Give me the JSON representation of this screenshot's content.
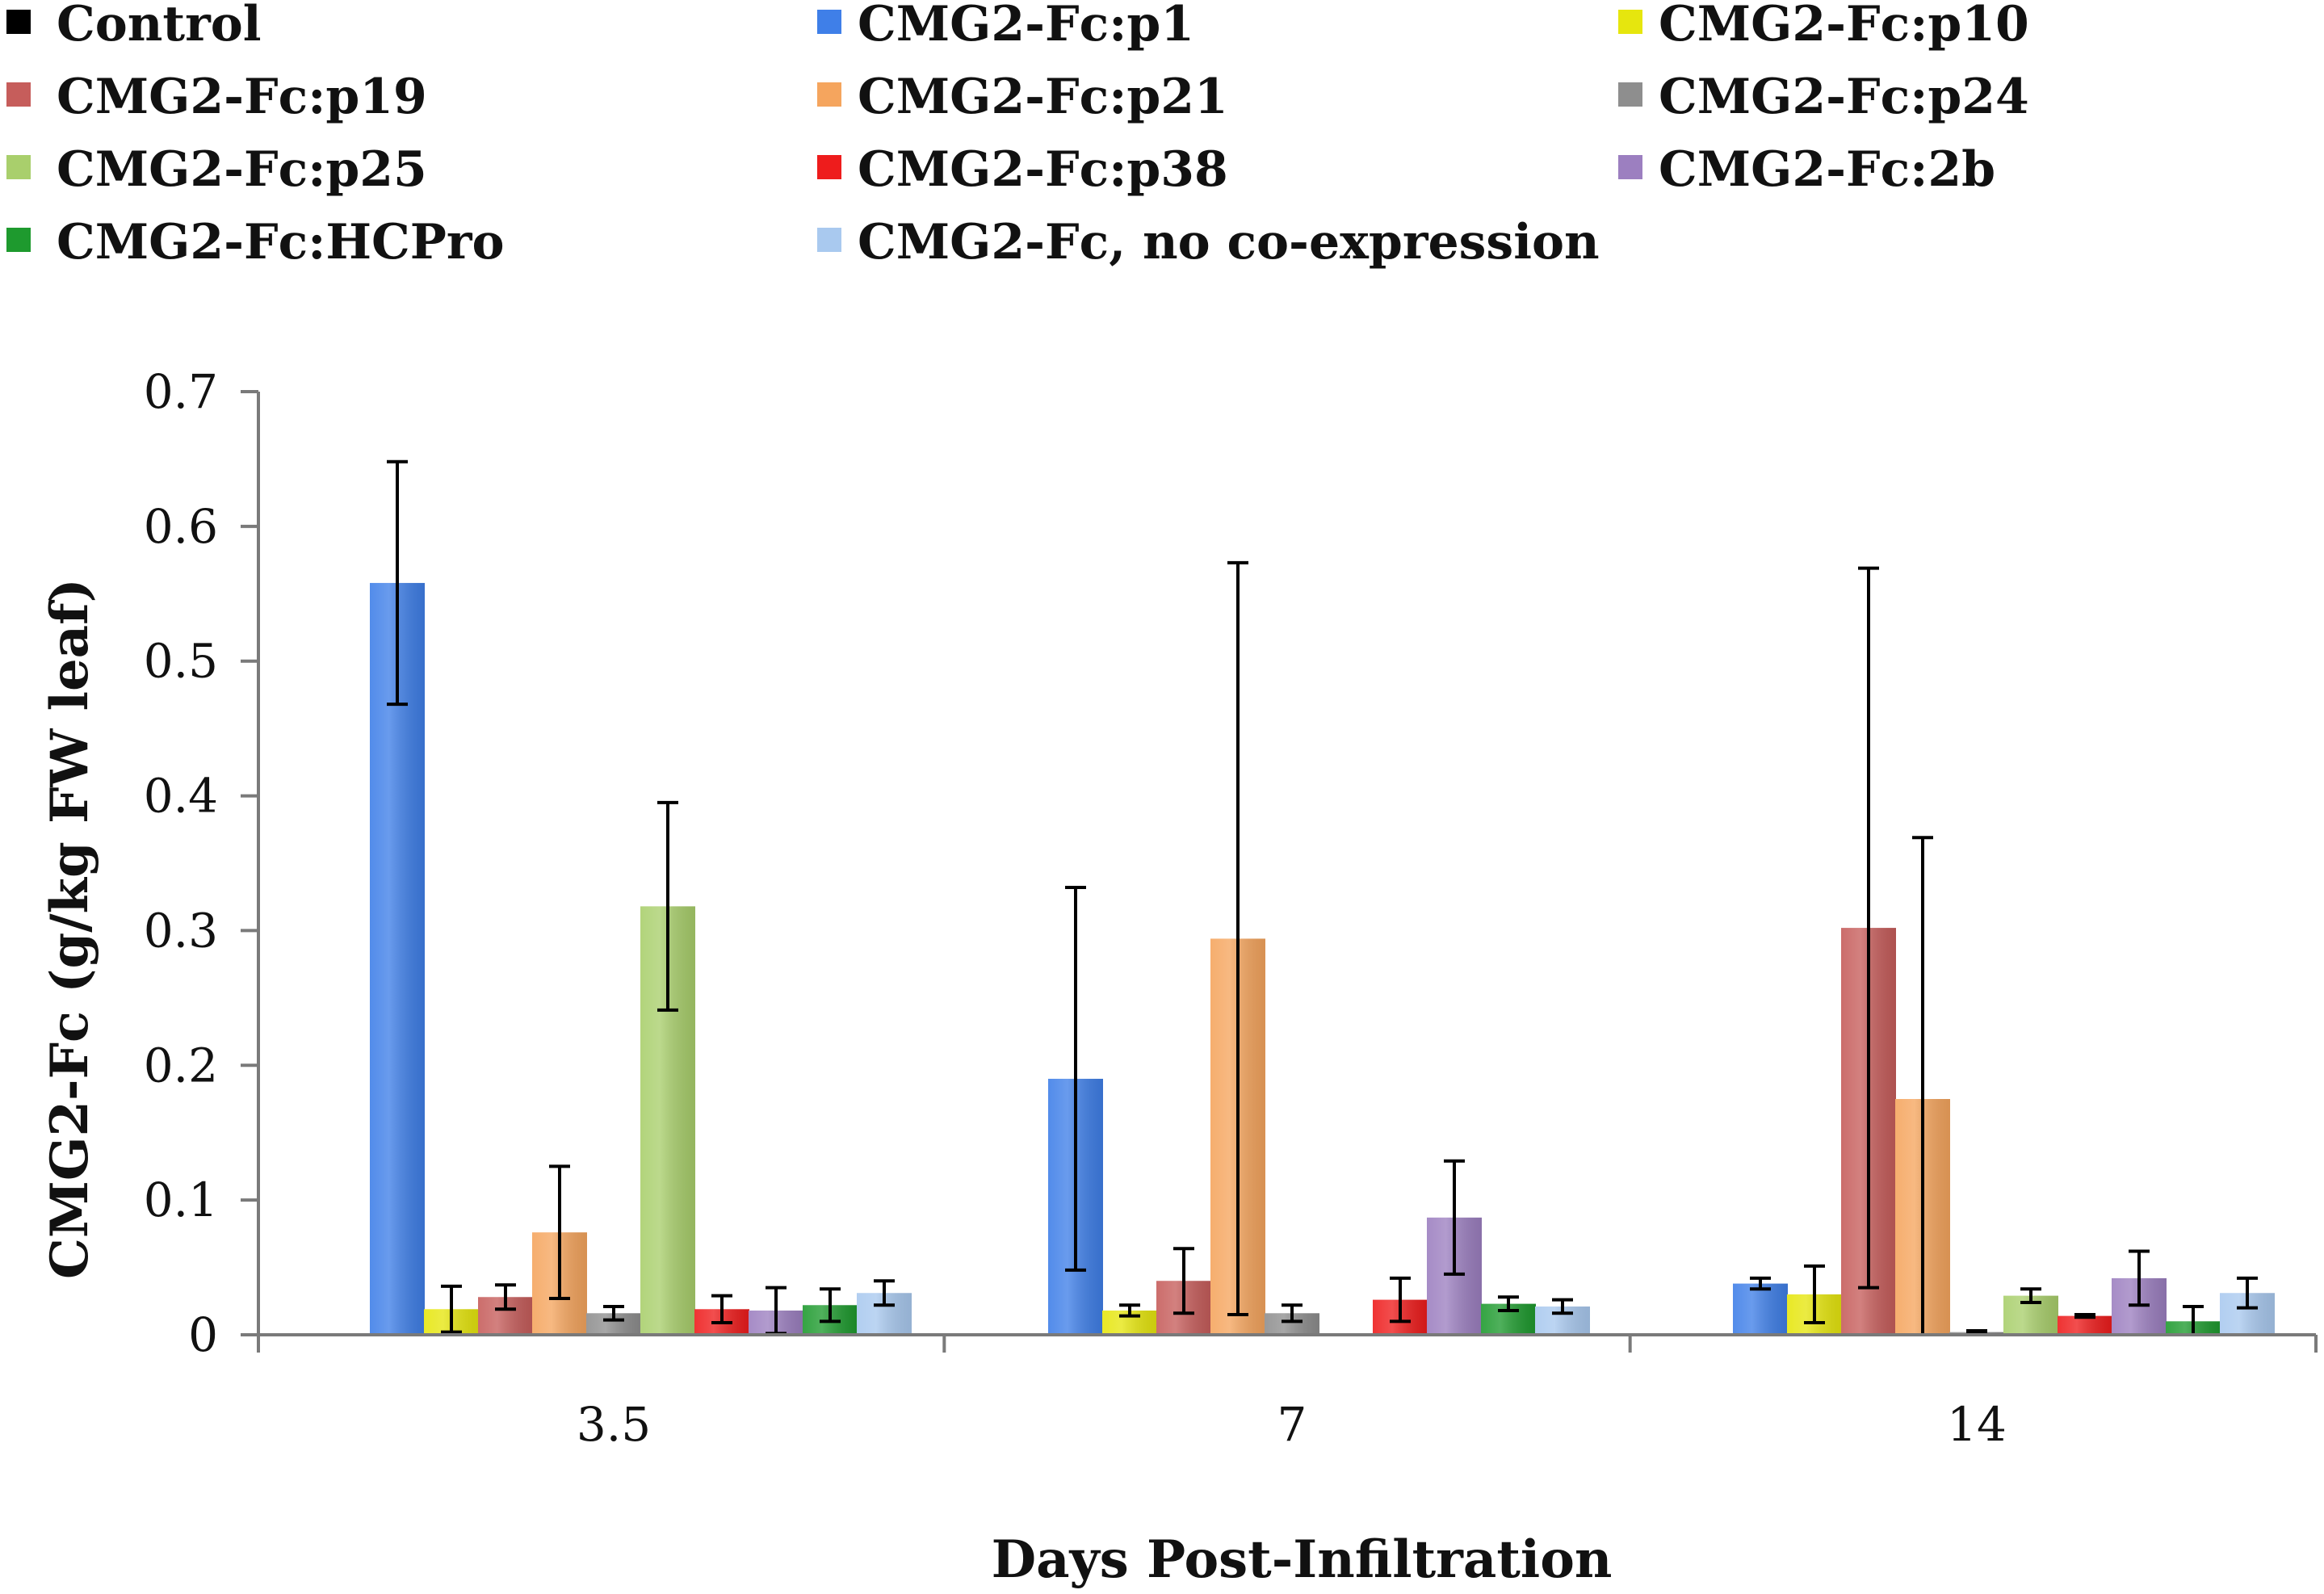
{
  "chart_data": {
    "type": "bar",
    "title": "",
    "xlabel": "Days Post-Infiltration",
    "ylabel": "CMG2-Fc (g/kg FW leaf)",
    "ylim": [
      0,
      0.7
    ],
    "yticks": [
      "0",
      "0.1",
      "0.2",
      "0.3",
      "0.4",
      "0.5",
      "0.6",
      "0.7"
    ],
    "y_tick_values": [
      0,
      0.1,
      0.2,
      0.3,
      0.4,
      0.5,
      0.6,
      0.7
    ],
    "categories": [
      "3.5",
      "7",
      "14"
    ],
    "grid": false,
    "legend_position": "top",
    "series": [
      {
        "name": "Control",
        "color": "#000000",
        "values": [
          0,
          0,
          0
        ],
        "errors": [
          0,
          0,
          0
        ]
      },
      {
        "name": "CMG2-Fc:p1",
        "color": "#3f7fe8",
        "values": [
          0.558,
          0.19,
          0.038
        ],
        "errors": [
          0.09,
          0.142,
          0.004
        ]
      },
      {
        "name": "CMG2-Fc:p10",
        "color": "#e6e60e",
        "values": [
          0.019,
          0.018,
          0.03
        ],
        "errors": [
          0.017,
          0.004,
          0.021
        ]
      },
      {
        "name": "CMG2-Fc:p19",
        "color": "#c65d5b",
        "values": [
          0.028,
          0.04,
          0.302
        ],
        "errors": [
          0.009,
          0.024,
          0.267
        ]
      },
      {
        "name": "CMG2-Fc:p21",
        "color": "#f5a55e",
        "values": [
          0.076,
          0.294,
          0.175
        ],
        "errors": [
          0.049,
          0.279,
          0.194
        ]
      },
      {
        "name": "CMG2-Fc:p24",
        "color": "#8e8e8e",
        "values": [
          0.016,
          0.016,
          0.002
        ],
        "errors": [
          0.005,
          0.006,
          0.001
        ]
      },
      {
        "name": "CMG2-Fc:p25",
        "color": "#a9cf6c",
        "values": [
          0.318,
          0,
          0.029
        ],
        "errors": [
          0.077,
          0,
          0.005
        ]
      },
      {
        "name": "CMG2-Fc:p38",
        "color": "#ee1c1c",
        "values": [
          0.019,
          0.026,
          0.014
        ],
        "errors": [
          0.01,
          0.016,
          0.001
        ]
      },
      {
        "name": "CMG2-Fc:2b",
        "color": "#9c7fc0",
        "values": [
          0.018,
          0.087,
          0.042
        ],
        "errors": [
          0.017,
          0.042,
          0.02
        ]
      },
      {
        "name": "CMG2-Fc:HCPro",
        "color": "#1e9a2e",
        "values": [
          0.022,
          0.023,
          0.01
        ],
        "errors": [
          0.012,
          0.005,
          0.011
        ]
      },
      {
        "name": "CMG2-Fc, no co-expression",
        "color": "#a9c9ef",
        "values": [
          0.031,
          0.021,
          0.031
        ],
        "errors": [
          0.009,
          0.005,
          0.011
        ]
      }
    ]
  }
}
